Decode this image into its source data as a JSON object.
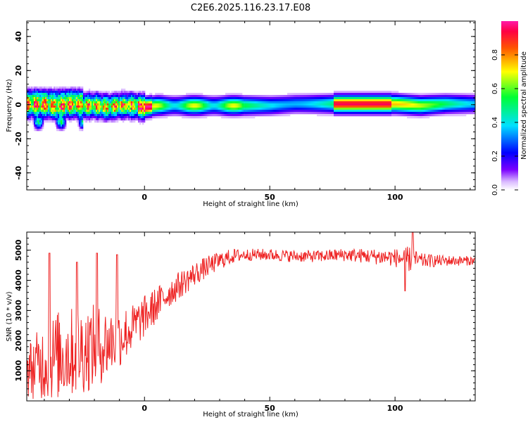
{
  "title": "C2E6.2025.116.23.17.E08",
  "colors": {
    "snr_line": "#ee2222",
    "spectrogram_peak": "#ff3344",
    "background": "#ffffff"
  },
  "chart_data": [
    {
      "type": "heatmap",
      "xlabel": "Height of straight line (km)",
      "ylabel": "Frequency (Hz)",
      "xlim": [
        -47,
        132
      ],
      "ylim": [
        -50,
        49
      ],
      "x_ticks": [
        0,
        50,
        100
      ],
      "y_ticks": [
        40,
        20,
        0,
        -20,
        -40
      ],
      "colormap": "rainbow (purple-blue-cyan-green-yellow-red-magenta)",
      "colorbar": {
        "label": "Normalized spectral amplitude",
        "range": [
          0.0,
          1.0
        ],
        "ticks": [
          0.0,
          0.2,
          0.4,
          0.6,
          0.8
        ]
      },
      "peak_frequency_track": {
        "x": [
          -45,
          -40,
          -35,
          -30,
          -25,
          -20,
          -15,
          -10,
          -5,
          0,
          5,
          10,
          20,
          30,
          40,
          50,
          60,
          70,
          80,
          90,
          100,
          110,
          120,
          132
        ],
        "y": [
          0,
          0,
          -1,
          0,
          0,
          0,
          -1,
          0,
          0,
          -1,
          0,
          0,
          0,
          0,
          0,
          0,
          1,
          1,
          1,
          1,
          1,
          0,
          1,
          1
        ]
      }
    },
    {
      "type": "line",
      "xlabel": "Height of straight line (km)",
      "ylabel": "SNR (10 * v/v)",
      "xlim": [
        -47,
        132
      ],
      "ylim": [
        0,
        5600
      ],
      "x_ticks": [
        0,
        50,
        100
      ],
      "y_ticks": [
        1000,
        2000,
        3000,
        4000,
        5000
      ],
      "series": [
        {
          "envelope_x": [
            -47,
            -40,
            -35,
            -30,
            -25,
            -20,
            -15,
            -10,
            -5,
            0,
            5,
            10,
            15,
            20,
            25,
            30,
            35,
            40,
            50,
            60,
            70,
            80,
            90,
            100,
            105,
            110,
            120,
            132
          ],
          "mean_y": [
            1000,
            1300,
            1500,
            1600,
            1700,
            1800,
            1900,
            2100,
            2400,
            2800,
            3200,
            3600,
            3900,
            4200,
            4450,
            4650,
            4800,
            4850,
            4850,
            4800,
            4800,
            4850,
            4800,
            4750,
            4700,
            4650,
            4650,
            4650
          ],
          "spread_y": [
            900,
            1300,
            1500,
            1500,
            1500,
            1400,
            1200,
            1000,
            800,
            700,
            600,
            500,
            450,
            400,
            350,
            300,
            250,
            200,
            200,
            200,
            200,
            220,
            250,
            300,
            450,
            250,
            180,
            150
          ],
          "spikes": [
            {
              "x": -38,
              "y": 4900
            },
            {
              "x": -27,
              "y": 4600
            },
            {
              "x": -19,
              "y": 4900
            },
            {
              "x": -11,
              "y": 4850
            },
            {
              "x": 104,
              "y": 3650
            },
            {
              "x": 107,
              "y": 5600
            }
          ]
        }
      ]
    }
  ]
}
